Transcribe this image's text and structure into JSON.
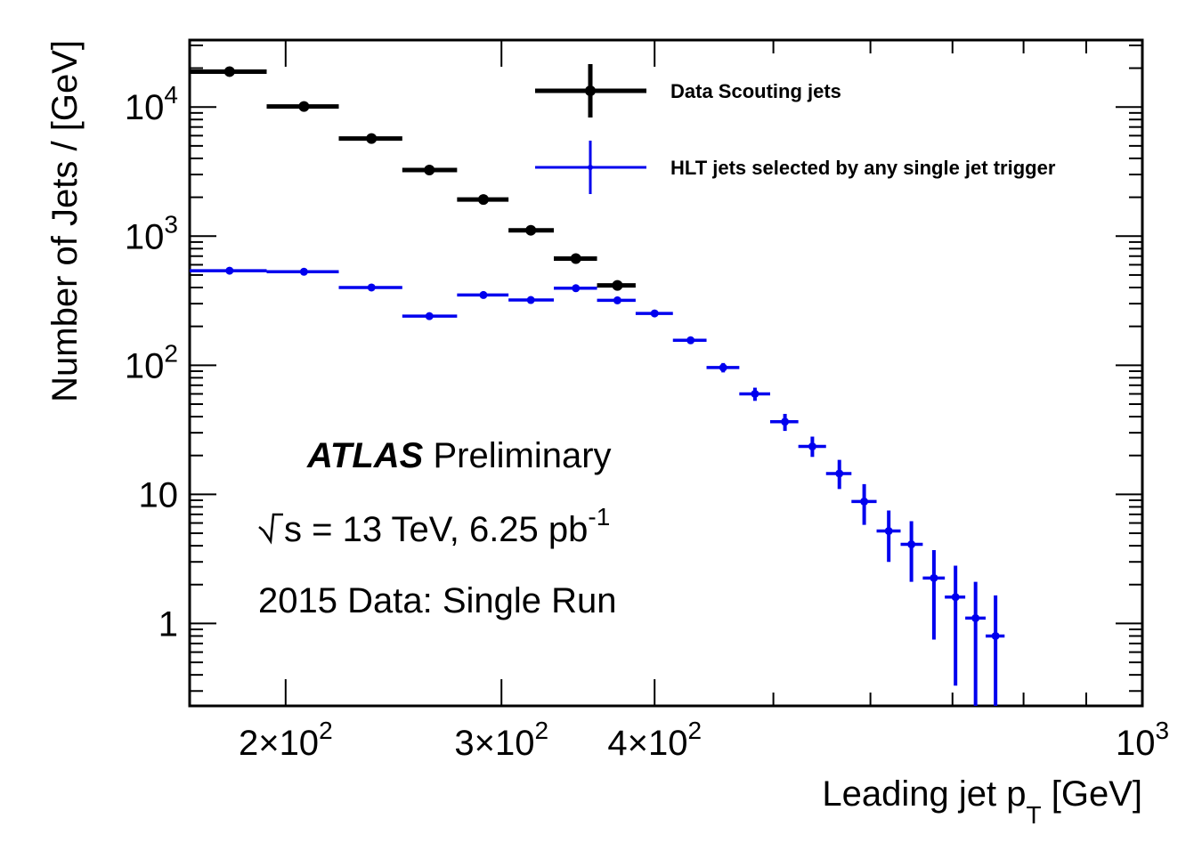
{
  "chart_data": {
    "type": "scatter",
    "xscale": "log",
    "yscale": "log",
    "xlim": [
      167,
      1000
    ],
    "ylim": [
      0.23,
      33000
    ],
    "xlabel": "Leading jet p",
    "xlabel_sub": "T",
    "xlabel_unit": "[GeV]",
    "ylabel": "Number of Jets / [GeV]",
    "x_ticks": [
      {
        "value": 200,
        "mant": "2",
        "base": "10",
        "exp": "2"
      },
      {
        "value": 300,
        "mant": "3",
        "base": "10",
        "exp": "2"
      },
      {
        "value": 400,
        "mant": "4",
        "base": "10",
        "exp": "2"
      },
      {
        "value": 1000,
        "mant": "",
        "base": "10",
        "exp": "3"
      }
    ],
    "y_ticks": [
      {
        "value": 1,
        "base": "1",
        "exp": ""
      },
      {
        "value": 10,
        "base": "10",
        "exp": ""
      },
      {
        "value": 100,
        "base": "10",
        "exp": "2"
      },
      {
        "value": 1000,
        "base": "10",
        "exp": "3"
      },
      {
        "value": 10000,
        "base": "10",
        "exp": "4"
      }
    ],
    "grid": false,
    "legend_position": "top-right",
    "series": [
      {
        "name": "Data Scouting jets",
        "color": "#000000",
        "points": [
          {
            "x": 180,
            "xlo": 167,
            "xhi": 193,
            "y": 18800
          },
          {
            "x": 207,
            "xlo": 193,
            "xhi": 221,
            "y": 10100
          },
          {
            "x": 235,
            "xlo": 221,
            "xhi": 249,
            "y": 5700
          },
          {
            "x": 262,
            "xlo": 249,
            "xhi": 276,
            "y": 3250
          },
          {
            "x": 290,
            "xlo": 276,
            "xhi": 304,
            "y": 1920
          },
          {
            "x": 317,
            "xlo": 304,
            "xhi": 331,
            "y": 1110
          },
          {
            "x": 345,
            "xlo": 331,
            "xhi": 359,
            "y": 670
          },
          {
            "x": 373,
            "xlo": 359,
            "xhi": 386,
            "y": 415
          }
        ]
      },
      {
        "name": "HLT jets selected by any single jet trigger",
        "color": "#0000ee",
        "points": [
          {
            "x": 180,
            "xlo": 167,
            "xhi": 193,
            "y": 540,
            "ylo": 520,
            "yhi": 560
          },
          {
            "x": 207,
            "xlo": 193,
            "xhi": 221,
            "y": 530,
            "ylo": 510,
            "yhi": 550
          },
          {
            "x": 235,
            "xlo": 221,
            "xhi": 249,
            "y": 400,
            "ylo": 385,
            "yhi": 415
          },
          {
            "x": 262,
            "xlo": 249,
            "xhi": 276,
            "y": 240,
            "ylo": 230,
            "yhi": 250
          },
          {
            "x": 290,
            "xlo": 276,
            "xhi": 304,
            "y": 350,
            "ylo": 336,
            "yhi": 364
          },
          {
            "x": 317,
            "xlo": 304,
            "xhi": 331,
            "y": 320,
            "ylo": 307,
            "yhi": 333
          },
          {
            "x": 345,
            "xlo": 331,
            "xhi": 359,
            "y": 395,
            "ylo": 380,
            "yhi": 410
          },
          {
            "x": 373,
            "xlo": 359,
            "xhi": 386,
            "y": 318,
            "ylo": 305,
            "yhi": 331
          },
          {
            "x": 400,
            "xlo": 386,
            "xhi": 414,
            "y": 252,
            "ylo": 240,
            "yhi": 264
          },
          {
            "x": 428,
            "xlo": 414,
            "xhi": 441,
            "y": 156,
            "ylo": 146,
            "yhi": 166
          },
          {
            "x": 455,
            "xlo": 441,
            "xhi": 469,
            "y": 96,
            "ylo": 88,
            "yhi": 104
          },
          {
            "x": 483,
            "xlo": 469,
            "xhi": 497,
            "y": 60,
            "ylo": 53,
            "yhi": 67
          },
          {
            "x": 511,
            "xlo": 497,
            "xhi": 524,
            "y": 36.5,
            "ylo": 31,
            "yhi": 42
          },
          {
            "x": 538,
            "xlo": 524,
            "xhi": 552,
            "y": 23.5,
            "ylo": 19.5,
            "yhi": 28
          },
          {
            "x": 566,
            "xlo": 552,
            "xhi": 579,
            "y": 14.5,
            "ylo": 11,
            "yhi": 18.5
          },
          {
            "x": 593,
            "xlo": 579,
            "xhi": 607,
            "y": 8.8,
            "ylo": 5.8,
            "yhi": 12
          },
          {
            "x": 621,
            "xlo": 607,
            "xhi": 635,
            "y": 5.2,
            "ylo": 3.0,
            "yhi": 7.5
          },
          {
            "x": 648,
            "xlo": 635,
            "xhi": 662,
            "y": 4.1,
            "ylo": 2.1,
            "yhi": 6.2
          },
          {
            "x": 676,
            "xlo": 662,
            "xhi": 690,
            "y": 2.25,
            "ylo": 0.75,
            "yhi": 3.7
          },
          {
            "x": 704,
            "xlo": 690,
            "xhi": 717,
            "y": 1.6,
            "ylo": 0.33,
            "yhi": 2.8
          },
          {
            "x": 731,
            "xlo": 717,
            "xhi": 745,
            "y": 1.1,
            "ylo": 0.23,
            "yhi": 2.1
          },
          {
            "x": 759,
            "xlo": 745,
            "xhi": 772,
            "y": 0.8,
            "ylo": 0.23,
            "yhi": 1.65
          }
        ]
      }
    ],
    "annotations": {
      "atlas": "ATLAS",
      "preliminary": "Preliminary",
      "energy": "s = 13 TeV, 6.25 pb",
      "energy_sup": "-1",
      "run": "2015 Data: Single Run"
    }
  }
}
